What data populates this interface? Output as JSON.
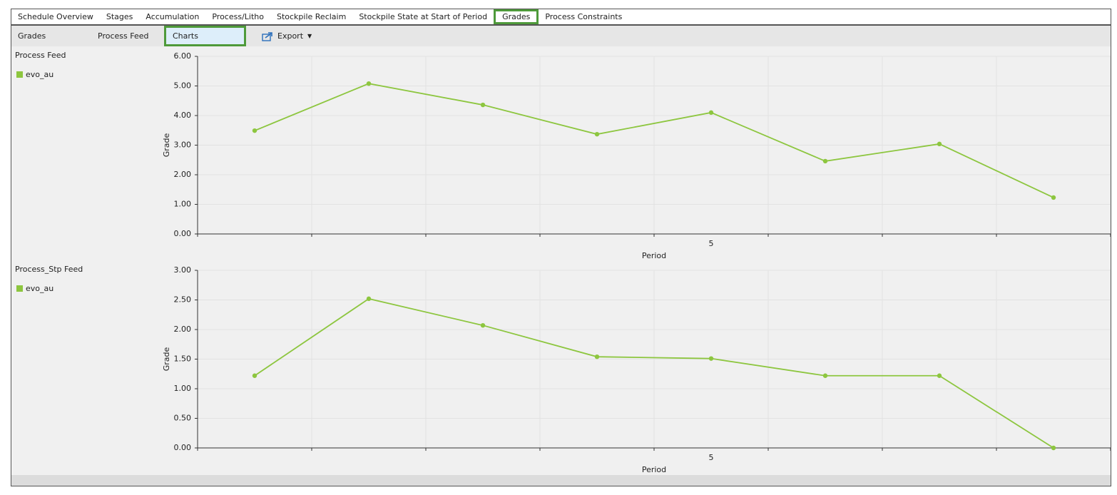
{
  "tabs": [
    {
      "label": "Schedule Overview",
      "selected": false
    },
    {
      "label": "Stages",
      "selected": false
    },
    {
      "label": "Accumulation",
      "selected": false
    },
    {
      "label": "Process/Litho",
      "selected": false
    },
    {
      "label": "Stockpile Reclaim",
      "selected": false
    },
    {
      "label": "Stockpile State at Start of Period",
      "selected": false
    },
    {
      "label": "Grades",
      "selected": true
    },
    {
      "label": "Process Constraints",
      "selected": false
    }
  ],
  "toolbar": {
    "items": [
      {
        "label": "Grades",
        "selected": false
      },
      {
        "label": "Process Feed",
        "selected": false
      },
      {
        "label": "Charts",
        "selected": true
      }
    ],
    "export": "Export"
  },
  "chart_data": [
    {
      "type": "line",
      "title": "Process Feed",
      "xlabel": "Period",
      "ylabel": "Grade",
      "categories": [
        null,
        null,
        null,
        null,
        "5",
        null,
        null,
        null
      ],
      "series": [
        {
          "name": "evo_au",
          "color": "#8dc63f",
          "values": [
            3.49,
            5.08,
            4.36,
            3.37,
            4.1,
            2.46,
            3.04,
            1.23
          ]
        }
      ],
      "ylim": [
        0,
        6
      ],
      "yticks": [
        {
          "value": 0,
          "label": "0.00"
        },
        {
          "value": 1,
          "label": "1.00"
        },
        {
          "value": 2,
          "label": "2.00"
        },
        {
          "value": 3,
          "label": "3.00"
        },
        {
          "value": 4,
          "label": "4.00"
        },
        {
          "value": 5,
          "label": "5.00"
        },
        {
          "value": 6,
          "label": "6.00"
        }
      ],
      "grid": true
    },
    {
      "type": "line",
      "title": "Process_Stp Feed",
      "xlabel": "Period",
      "ylabel": "Grade",
      "categories": [
        null,
        null,
        null,
        null,
        "5",
        null,
        null,
        null
      ],
      "series": [
        {
          "name": "evo_au",
          "color": "#8dc63f",
          "values": [
            1.22,
            2.52,
            2.07,
            1.54,
            1.51,
            1.22,
            1.22,
            0
          ]
        }
      ],
      "ylim": [
        0,
        3
      ],
      "yticks": [
        {
          "value": 0,
          "label": "0.00"
        },
        {
          "value": 0.5,
          "label": "0.50"
        },
        {
          "value": 1,
          "label": "1.00"
        },
        {
          "value": 1.5,
          "label": "1.50"
        },
        {
          "value": 2,
          "label": "2.00"
        },
        {
          "value": 2.5,
          "label": "2.50"
        },
        {
          "value": 3,
          "label": "3.00"
        }
      ],
      "grid": true
    }
  ]
}
